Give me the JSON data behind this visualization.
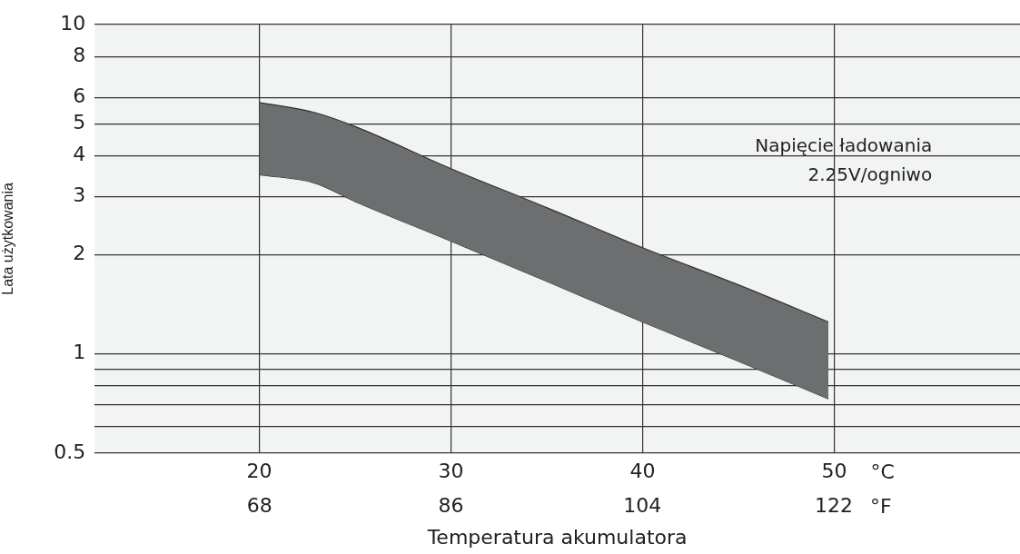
{
  "chart_data": {
    "type": "area",
    "xlabel": "Temperatura akumulatora",
    "ylabel": "Lata użytkowania",
    "annotations": [
      "Napięcie ładowania\n2.25V/ogniwo",
      "°C",
      "°F"
    ],
    "log": "y",
    "grid": true,
    "xlim": [
      11.4,
      59.7
    ],
    "xticks": [
      20,
      30,
      40,
      50
    ],
    "x2lim": [
      52.5,
      139.5
    ],
    "x2ticks": [
      68,
      86,
      104,
      122
    ],
    "ylim": [
      0.5,
      10
    ],
    "yticks": [
      0.5,
      {
        "value": 0.6,
        "label": null
      },
      {
        "value": 0.7,
        "label": null
      },
      {
        "value": 0.8,
        "label": null
      },
      {
        "value": 0.9,
        "label": null
      },
      1,
      2,
      3,
      4,
      5,
      6,
      8,
      10
    ],
    "series": [
      {
        "color": "#6d6e70",
        "x": [
          20,
          22.9,
          25,
          30,
          35,
          40,
          45,
          49.7
        ],
        "values": [
          5.8,
          5.4,
          4.9,
          3.65,
          2.78,
          2.1,
          1.62,
          1.25
        ]
      },
      {
        "type": "line",
        "color": "#333333",
        "x": [
          20,
          22.9,
          25,
          30,
          35,
          40,
          45,
          49.7
        ],
        "values": [
          3.5,
          3.3,
          2.9,
          2.2,
          1.66,
          1.25,
          0.95,
          0.73
        ]
      }
    ]
  }
}
